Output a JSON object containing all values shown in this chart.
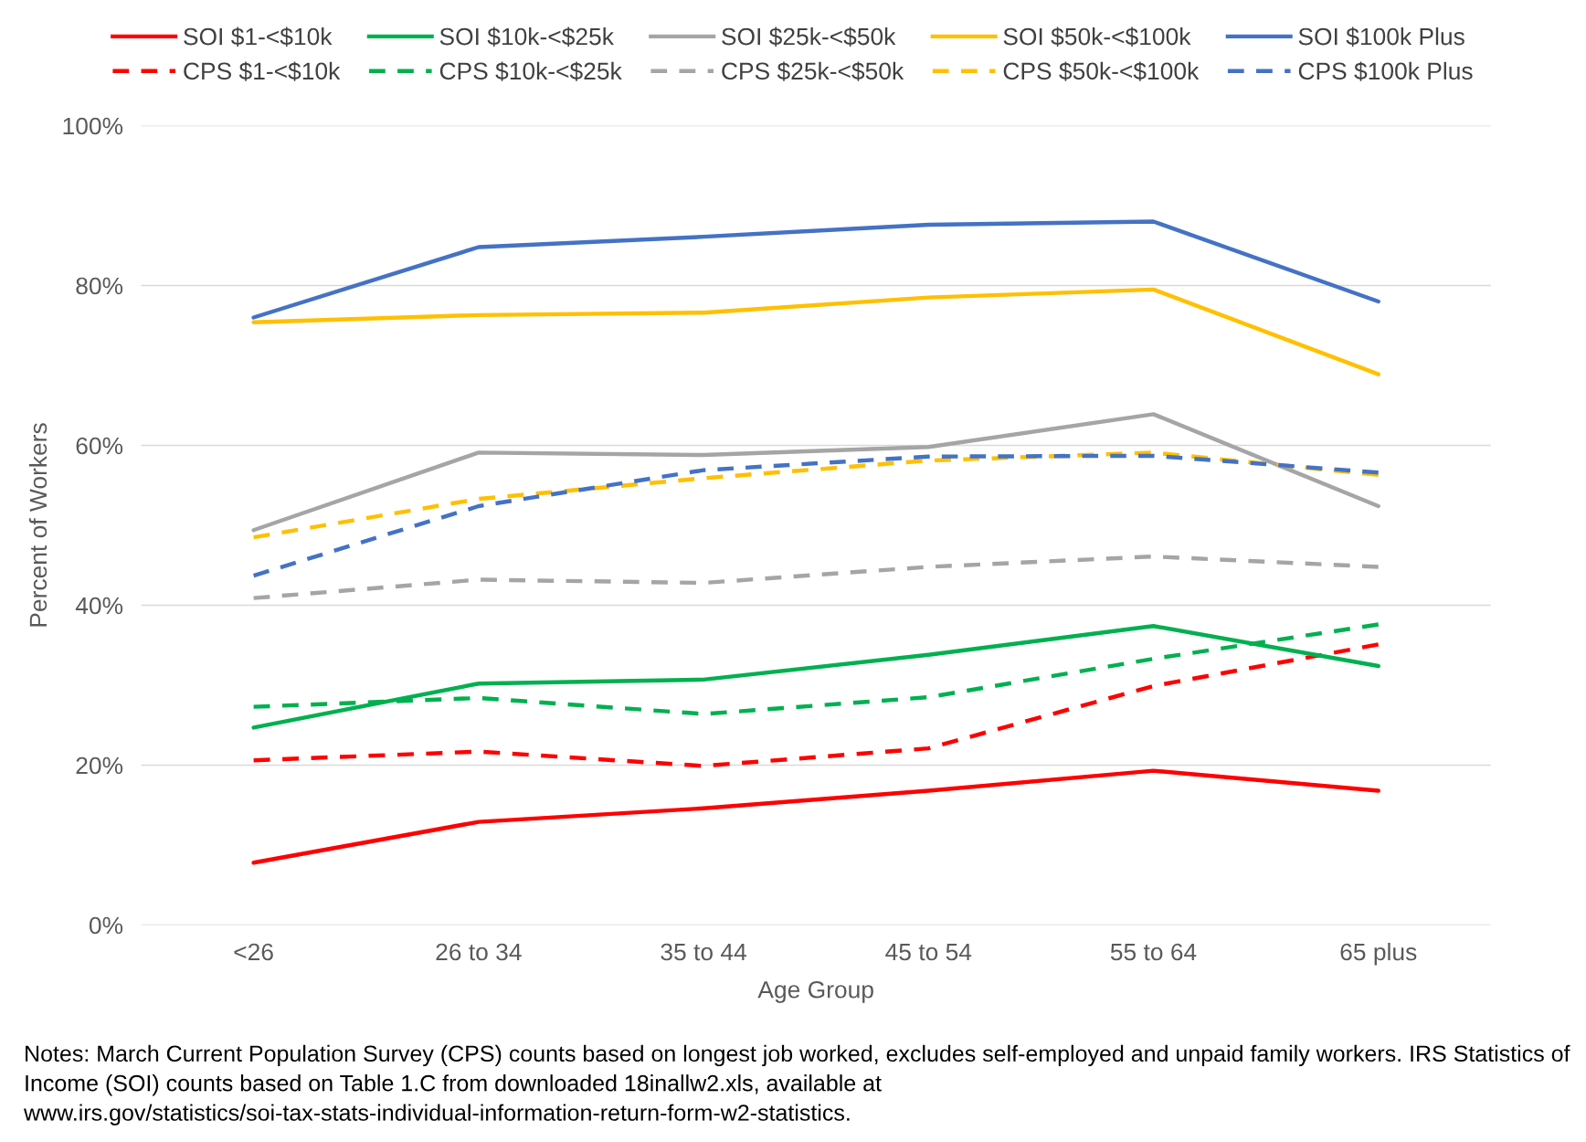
{
  "chart_data": {
    "type": "line",
    "xlabel": "Age Group",
    "ylabel": "Percent of Workers",
    "categories": [
      "<26",
      "26 to 34",
      "35 to 44",
      "45 to 54",
      "55 to 64",
      "65 plus"
    ],
    "series": [
      {
        "name": "SOI $1-<$10k",
        "color": "#ff0000",
        "line_style": "solid",
        "values": [
          7.8,
          12.9,
          14.6,
          16.8,
          19.3,
          16.8
        ]
      },
      {
        "name": "CPS $1-<$10k",
        "color": "#ff0000",
        "line_style": "dashed",
        "values": [
          20.6,
          21.7,
          19.9,
          22.1,
          29.9,
          35.1
        ]
      },
      {
        "name": "SOI $10k-<$25k",
        "color": "#00b050",
        "line_style": "solid",
        "values": [
          24.7,
          30.2,
          30.7,
          33.8,
          37.4,
          32.4
        ]
      },
      {
        "name": "CPS $10k-<$25k",
        "color": "#00b050",
        "line_style": "dashed",
        "values": [
          27.3,
          28.4,
          26.4,
          28.5,
          33.3,
          37.6
        ]
      },
      {
        "name": "SOI $25k-<$50k",
        "color": "#a5a5a5",
        "line_style": "solid",
        "values": [
          49.4,
          59.1,
          58.8,
          59.8,
          63.9,
          52.4
        ]
      },
      {
        "name": "CPS $25k-<$50k",
        "color": "#a5a5a5",
        "line_style": "dashed",
        "values": [
          40.9,
          43.2,
          42.8,
          44.8,
          46.1,
          44.8
        ]
      },
      {
        "name": "SOI $50k-<$100k",
        "color": "#ffc000",
        "line_style": "solid",
        "values": [
          75.4,
          76.3,
          76.6,
          78.5,
          79.5,
          68.9
        ]
      },
      {
        "name": "CPS $50k-<$100k",
        "color": "#ffc000",
        "line_style": "dashed",
        "values": [
          48.5,
          53.3,
          55.9,
          58.1,
          59.1,
          56.3
        ]
      },
      {
        "name": "SOI $100k Plus",
        "color": "#4472c4",
        "line_style": "solid",
        "values": [
          76.0,
          84.8,
          86.1,
          87.6,
          88.0,
          78.0
        ]
      },
      {
        "name": "CPS $100k Plus",
        "color": "#4472c4",
        "line_style": "dashed",
        "values": [
          43.7,
          52.4,
          56.9,
          58.6,
          58.7,
          56.6
        ]
      }
    ],
    "ylim": [
      0,
      100
    ],
    "yticks": [
      {
        "value": 0,
        "label": "0%"
      },
      {
        "value": 20,
        "label": "20%"
      },
      {
        "value": 40,
        "label": "40%"
      },
      {
        "value": 60,
        "label": "60%"
      },
      {
        "value": 80,
        "label": "80%"
      },
      {
        "value": 100,
        "label": "100%"
      }
    ],
    "grid": "y",
    "legend": "top",
    "marker": "none",
    "annotations": [
      "Notes: March Current Population Survey (CPS) counts based on longest job worked, excludes self-employed and unpaid family workers. IRS Statistics of Income (SOI) counts based on Table 1.C from downloaded 18inallw2.xls, available at www.irs.gov/statistics/soi-tax-stats-individual-information-return-form-w2-statistics."
    ]
  }
}
